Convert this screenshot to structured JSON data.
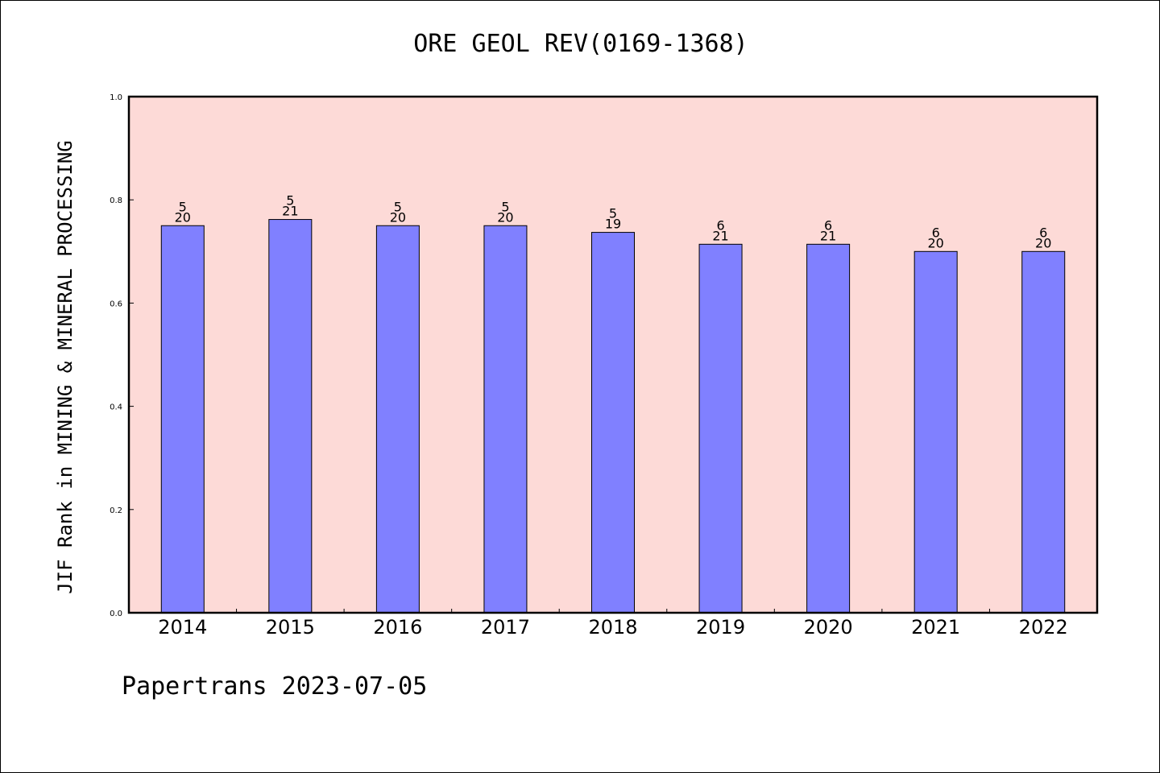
{
  "chart_data": {
    "type": "bar",
    "title": "ORE GEOL REV(0169-1368)",
    "ylabel": "JIF Rank in MINING & MINERAL PROCESSING",
    "xlabel": "",
    "categories": [
      "2014",
      "2015",
      "2016",
      "2017",
      "2018",
      "2019",
      "2020",
      "2021",
      "2022"
    ],
    "values": [
      0.75,
      0.762,
      0.75,
      0.75,
      0.737,
      0.714,
      0.714,
      0.7,
      0.7
    ],
    "rank": [
      "5",
      "5",
      "5",
      "5",
      "5",
      "6",
      "6",
      "6",
      "6"
    ],
    "total": [
      "20",
      "21",
      "20",
      "20",
      "19",
      "21",
      "21",
      "20",
      "20"
    ],
    "ylim": [
      0,
      1.0
    ],
    "yticks": [
      "0.0",
      "0.2",
      "0.4",
      "0.6",
      "0.8",
      "1.0"
    ],
    "grid": false,
    "colors": {
      "plot_background": "#fddad7",
      "bar_fill": "#8080ff",
      "bar_edge": "#000000"
    }
  },
  "footer": {
    "note": "Papertrans 2023-07-05"
  }
}
